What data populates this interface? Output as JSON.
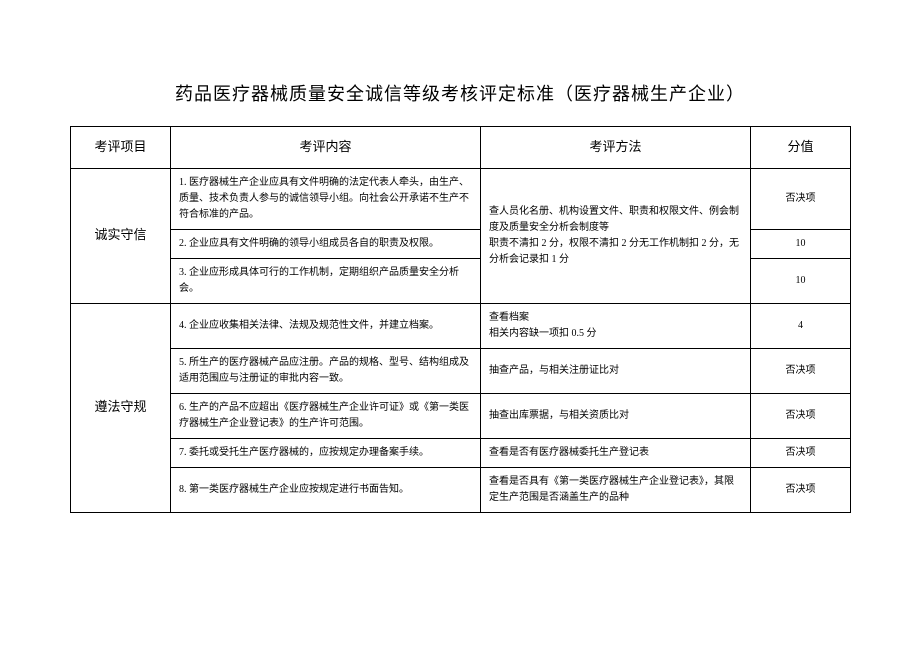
{
  "title": "药品医疗器械质量安全诚信等级考核评定标准（医疗器械生产企业）",
  "headers": {
    "category": "考评项目",
    "content": "考评内容",
    "method": "考评方法",
    "score": "分值"
  },
  "group1": {
    "category": "诚实守信",
    "row1_content": "1. 医疗器械生产企业应具有文件明确的法定代表人牵头，由生产、质量、技术负责人参与的诚信领导小组。向社会公开承诺不生产不符合标准的产品。",
    "row1_score": "否决项",
    "row2_content": "2. 企业应具有文件明确的领导小组成员各自的职责及权限。",
    "row2_score": "10",
    "row3_content": "3. 企业应形成具体可行的工作机制，定期组织产品质量安全分析会。",
    "row3_score": "10",
    "method": "查人员化名册、机构设置文件、职责和权限文件、例会制度及质量安全分析会制度等\n职责不清扣 2 分，权限不清扣 2 分无工作机制扣 2 分，无分析会记录扣 1 分"
  },
  "group2": {
    "category": "遵法守规",
    "row4_content": "4. 企业应收集相关法律、法规及规范性文件，并建立档案。",
    "row4_method": "查看档案\n相关内容缺一项扣 0.5 分",
    "row4_score": "4",
    "row5_content": "5. 所生产的医疗器械产品应注册。产品的规格、型号、结构组成及适用范围应与注册证的审批内容一致。",
    "row5_method": "抽查产品，与相关注册证比对",
    "row5_score": "否决项",
    "row6_content": "6. 生产的产品不应超出《医疗器械生产企业许可证》或《第一类医疗器械生产企业登记表》的生产许可范围。",
    "row6_method": "抽查出库票据，与相关资质比对",
    "row6_score": "否决项",
    "row7_content": "7. 委托或受托生产医疗器械的，应按规定办理备案手续。",
    "row7_method": "查看是否有医疗器械委托生产登记表",
    "row7_score": "否决项",
    "row8_content": "8. 第一类医疗器械生产企业应按规定进行书面告知。",
    "row8_method": "查看是否具有《第一类医疗器械生产企业登记表》，其限定生产范围是否涵盖生产的品种",
    "row8_score": "否决项"
  }
}
